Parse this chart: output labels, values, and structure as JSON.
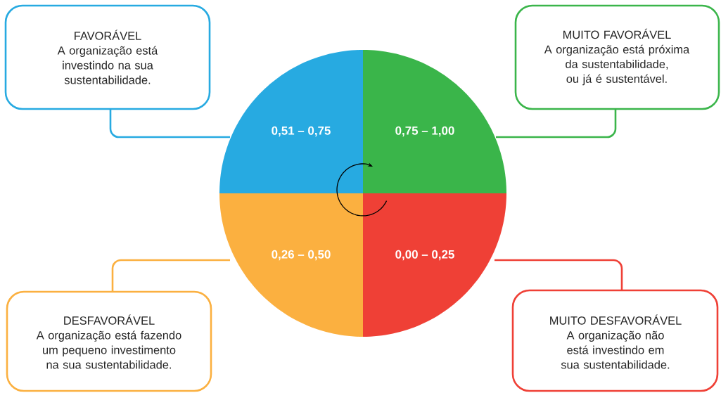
{
  "chart_data": {
    "type": "pie",
    "categories": [
      "0,75 – 1,00",
      "0,00 – 0,25",
      "0,26 – 0,50",
      "0,51 – 0,75"
    ],
    "values": [
      25,
      25,
      25,
      25
    ],
    "colors": [
      "#3ab54a",
      "#ef4036",
      "#fbb040",
      "#27aae1"
    ],
    "annotations": [
      "MUITO FAVORÁVEL",
      "A organização está próxima da sustentabilidade, ou já é sustentável.",
      "MUITO DESFAVORÁVEL",
      "A organização não está investindo em sua sustentabilidade.",
      "DESFAVORÁVEL",
      "A organização está fazendo um pequeno investimento na sua sustentabilidade.",
      "FAVORÁVEL",
      "A organização está investindo na sua sustentabilidade."
    ]
  }
}
